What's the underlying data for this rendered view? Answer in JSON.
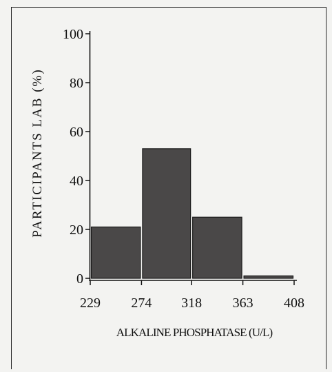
{
  "chart_data": {
    "type": "bar",
    "bin_edges": [
      229,
      274,
      318,
      363,
      408
    ],
    "x_tick_labels": [
      "229",
      "274",
      "318",
      "363",
      "408"
    ],
    "values": [
      21,
      53,
      25,
      1
    ],
    "xlabel": "ALKALINE PHOSPHATASE (U/L)",
    "ylabel": "PARTICIPANTS LAB (%)",
    "ylim": [
      0,
      100
    ],
    "y_ticks": [
      0,
      20,
      40,
      60,
      80,
      100
    ],
    "grid": false,
    "bar_color": "#4a4848"
  }
}
